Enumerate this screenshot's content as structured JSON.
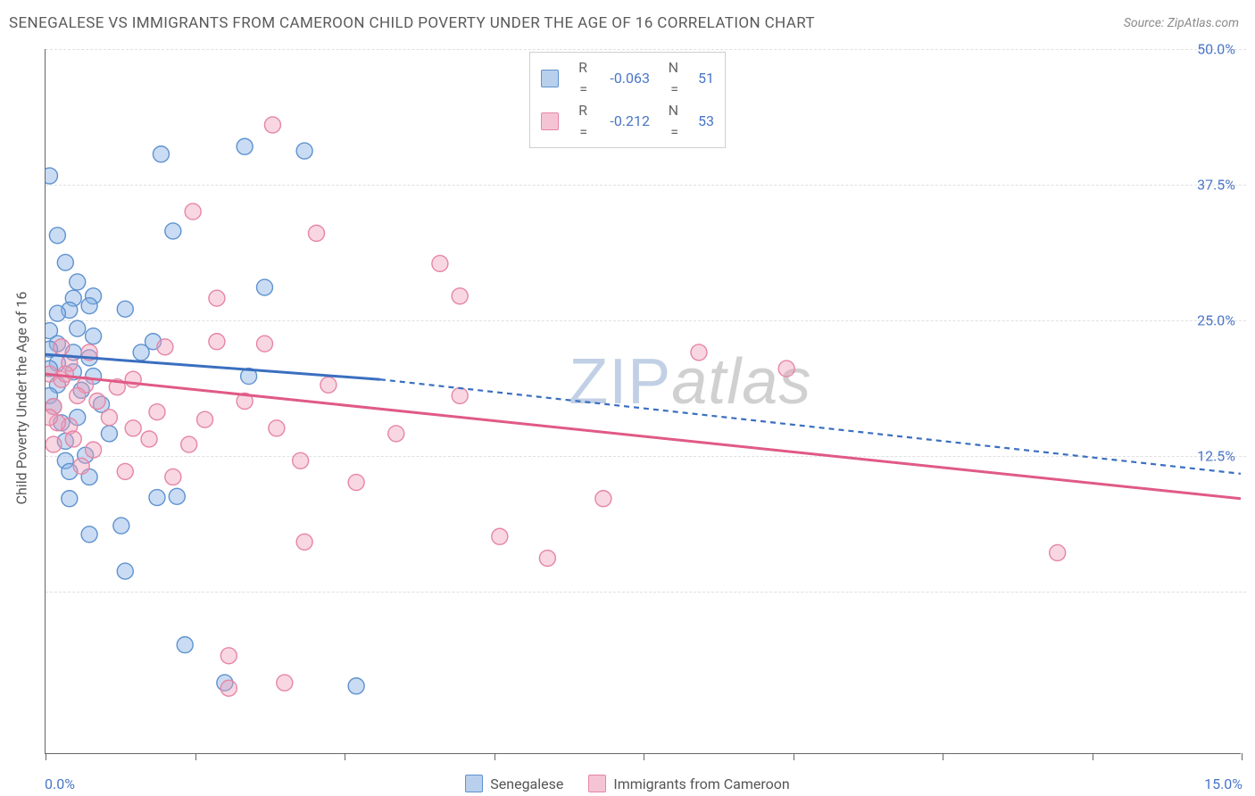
{
  "meta": {
    "title": "SENEGALESE VS IMMIGRANTS FROM CAMEROON CHILD POVERTY UNDER THE AGE OF 16 CORRELATION CHART",
    "source": "Source: ZipAtlas.com",
    "y_axis_title": "Child Poverty Under the Age of 16",
    "watermark_bold": "ZIP",
    "watermark_italic": "atlas"
  },
  "chart": {
    "type": "scatter",
    "xlim": [
      0,
      15
    ],
    "ylim": [
      -15,
      50
    ],
    "x_ticks": [
      0,
      1.875,
      3.75,
      5.625,
      7.5,
      9.375,
      11.25,
      13.125,
      15
    ],
    "y_gridlines": [
      0,
      12.5,
      25,
      37.5,
      50
    ],
    "y_labels": [
      {
        "y": 50.0,
        "text": "50.0%"
      },
      {
        "y": 37.5,
        "text": "37.5%"
      },
      {
        "y": 25.0,
        "text": "25.0%"
      },
      {
        "y": 12.5,
        "text": "12.5%"
      }
    ],
    "x_corner_left": "0.0%",
    "x_corner_right": "15.0%",
    "background_color": "#ffffff",
    "grid_color": "#e0e0e0",
    "axis_color": "#666666",
    "marker_radius": 9,
    "marker_stroke_width": 1.4,
    "line_width": 3,
    "dash_pattern": "6,5"
  },
  "series": [
    {
      "id": "senegalese",
      "label": "Senegalese",
      "color_fill": "rgba(137,178,228,0.45)",
      "color_stroke": "#5e92d0",
      "line_color": "#3a6fc0",
      "swatch_fill": "#b8d0ec",
      "swatch_border": "#5e92d0",
      "R": "-0.063",
      "N": "51",
      "regression": {
        "x1": 0,
        "y1": 21.8,
        "x2": 4.2,
        "y2": 19.5,
        "extend_to_x": 15,
        "extend_y": 10.8
      },
      "points": [
        [
          0.05,
          38.3
        ],
        [
          1.45,
          40.3
        ],
        [
          0.15,
          32.8
        ],
        [
          1.6,
          33.2
        ],
        [
          2.5,
          41.0
        ],
        [
          3.25,
          40.6
        ],
        [
          0.25,
          30.3
        ],
        [
          0.4,
          28.5
        ],
        [
          0.35,
          27.0
        ],
        [
          0.6,
          27.2
        ],
        [
          0.55,
          26.3
        ],
        [
          0.3,
          25.9
        ],
        [
          0.15,
          25.6
        ],
        [
          1.0,
          26.0
        ],
        [
          0.05,
          24.0
        ],
        [
          0.4,
          24.2
        ],
        [
          0.6,
          23.5
        ],
        [
          0.15,
          22.8
        ],
        [
          0.05,
          22.3
        ],
        [
          0.35,
          22.0
        ],
        [
          0.55,
          21.5
        ],
        [
          0.15,
          21.0
        ],
        [
          0.05,
          20.5
        ],
        [
          0.35,
          20.2
        ],
        [
          0.6,
          19.8
        ],
        [
          0.15,
          19.0
        ],
        [
          0.45,
          18.5
        ],
        [
          1.2,
          22.0
        ],
        [
          1.35,
          23.0
        ],
        [
          2.55,
          19.8
        ],
        [
          2.75,
          28.0
        ],
        [
          0.25,
          12.0
        ],
        [
          0.55,
          10.5
        ],
        [
          0.3,
          8.5
        ],
        [
          1.4,
          8.6
        ],
        [
          1.65,
          8.7
        ],
        [
          0.95,
          6.0
        ],
        [
          1.0,
          1.8
        ],
        [
          1.75,
          -5.0
        ],
        [
          2.25,
          -8.5
        ],
        [
          3.9,
          -8.8
        ],
        [
          0.55,
          5.2
        ],
        [
          0.2,
          15.5
        ],
        [
          0.7,
          17.2
        ],
        [
          0.4,
          16.0
        ],
        [
          0.05,
          18.0
        ],
        [
          0.8,
          14.5
        ],
        [
          0.25,
          13.8
        ],
        [
          0.1,
          17.0
        ],
        [
          0.5,
          12.5
        ],
        [
          0.3,
          11.0
        ]
      ]
    },
    {
      "id": "cameroon",
      "label": "Immigrants from Cameroon",
      "color_fill": "rgba(238,160,185,0.42)",
      "color_stroke": "#e685a5",
      "line_color": "#e05a85",
      "swatch_fill": "#f5c4d4",
      "swatch_border": "#e685a5",
      "R": "-0.212",
      "N": "53",
      "regression": {
        "x1": 0,
        "y1": 20.0,
        "x2": 15,
        "y2": 8.5,
        "extend_to_x": 15,
        "extend_y": 8.5
      },
      "points": [
        [
          2.85,
          43.0
        ],
        [
          1.85,
          35.0
        ],
        [
          3.4,
          33.0
        ],
        [
          4.95,
          30.2
        ],
        [
          3.55,
          19.0
        ],
        [
          5.2,
          27.2
        ],
        [
          0.2,
          22.5
        ],
        [
          0.3,
          21.0
        ],
        [
          0.05,
          20.0
        ],
        [
          0.5,
          19.0
        ],
        [
          0.4,
          18.0
        ],
        [
          0.65,
          17.5
        ],
        [
          0.1,
          17.0
        ],
        [
          0.8,
          16.0
        ],
        [
          0.3,
          15.2
        ],
        [
          1.1,
          15.0
        ],
        [
          1.4,
          16.5
        ],
        [
          1.3,
          14.0
        ],
        [
          2.15,
          27.0
        ],
        [
          2.15,
          23.0
        ],
        [
          2.75,
          22.8
        ],
        [
          2.5,
          17.5
        ],
        [
          2.0,
          15.8
        ],
        [
          1.8,
          13.5
        ],
        [
          2.9,
          15.0
        ],
        [
          3.2,
          12.0
        ],
        [
          3.9,
          10.0
        ],
        [
          3.25,
          4.5
        ],
        [
          5.2,
          18.0
        ],
        [
          4.4,
          14.5
        ],
        [
          5.7,
          5.0
        ],
        [
          6.3,
          3.0
        ],
        [
          7.0,
          8.5
        ],
        [
          8.2,
          22.0
        ],
        [
          9.3,
          20.5
        ],
        [
          12.7,
          3.5
        ],
        [
          1.5,
          22.5
        ],
        [
          1.1,
          19.5
        ],
        [
          0.55,
          22.0
        ],
        [
          0.2,
          19.5
        ],
        [
          0.15,
          15.5
        ],
        [
          1.0,
          11.0
        ],
        [
          0.9,
          18.8
        ],
        [
          1.6,
          10.5
        ],
        [
          2.3,
          -9.0
        ],
        [
          2.3,
          -6.0
        ],
        [
          3.0,
          -8.5
        ],
        [
          0.6,
          13.0
        ],
        [
          0.35,
          14.0
        ],
        [
          0.05,
          16.0
        ],
        [
          0.45,
          11.5
        ],
        [
          0.1,
          13.5
        ],
        [
          0.25,
          20.0
        ]
      ]
    }
  ]
}
